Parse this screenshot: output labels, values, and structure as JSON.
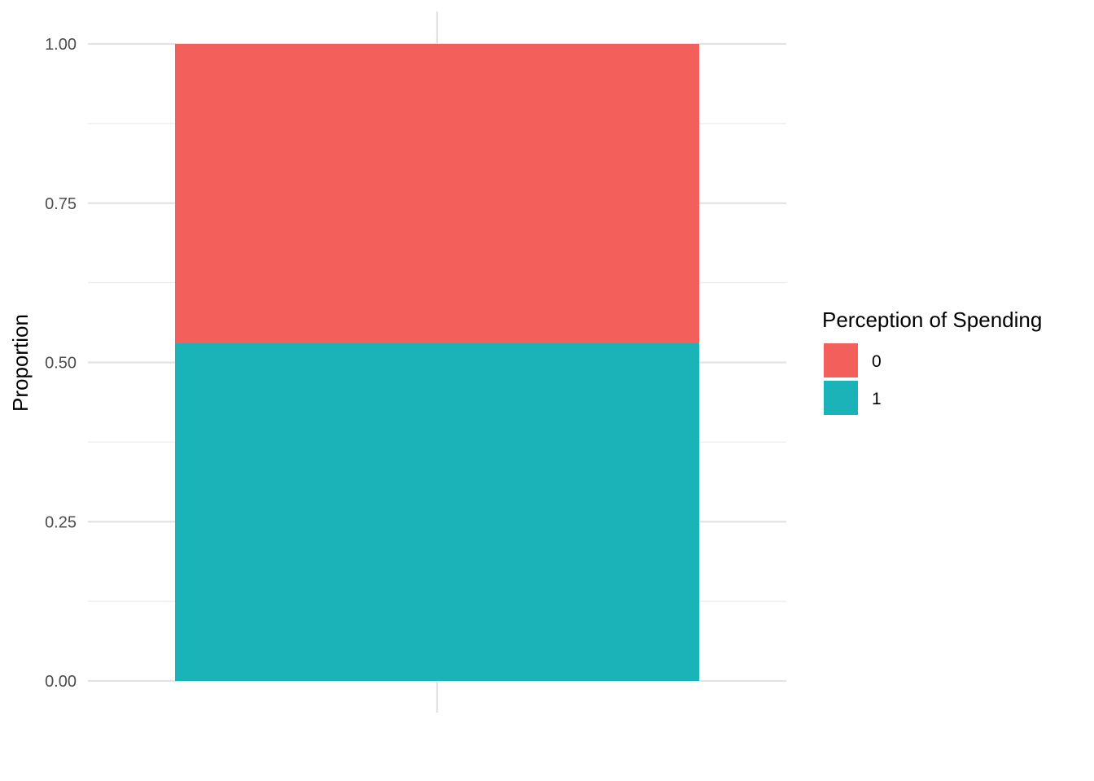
{
  "chart_data": {
    "type": "bar",
    "stacked": true,
    "categories": [
      ""
    ],
    "series": [
      {
        "name": "0",
        "values": [
          0.47
        ],
        "color": "#F35F5B"
      },
      {
        "name": "1",
        "values": [
          0.53
        ],
        "color": "#1AB3B7"
      }
    ],
    "title": "",
    "xlabel": "",
    "ylabel": "Proportion",
    "ylim": [
      0,
      1
    ],
    "yticks": [
      "0.00",
      "0.25",
      "0.50",
      "0.75",
      "1.00"
    ],
    "ytick_values": [
      0,
      0.25,
      0.5,
      0.75,
      1.0
    ],
    "grid": true,
    "legend": {
      "title": "Perception of Spending",
      "position": "right",
      "entries": [
        "0",
        "1"
      ]
    }
  }
}
